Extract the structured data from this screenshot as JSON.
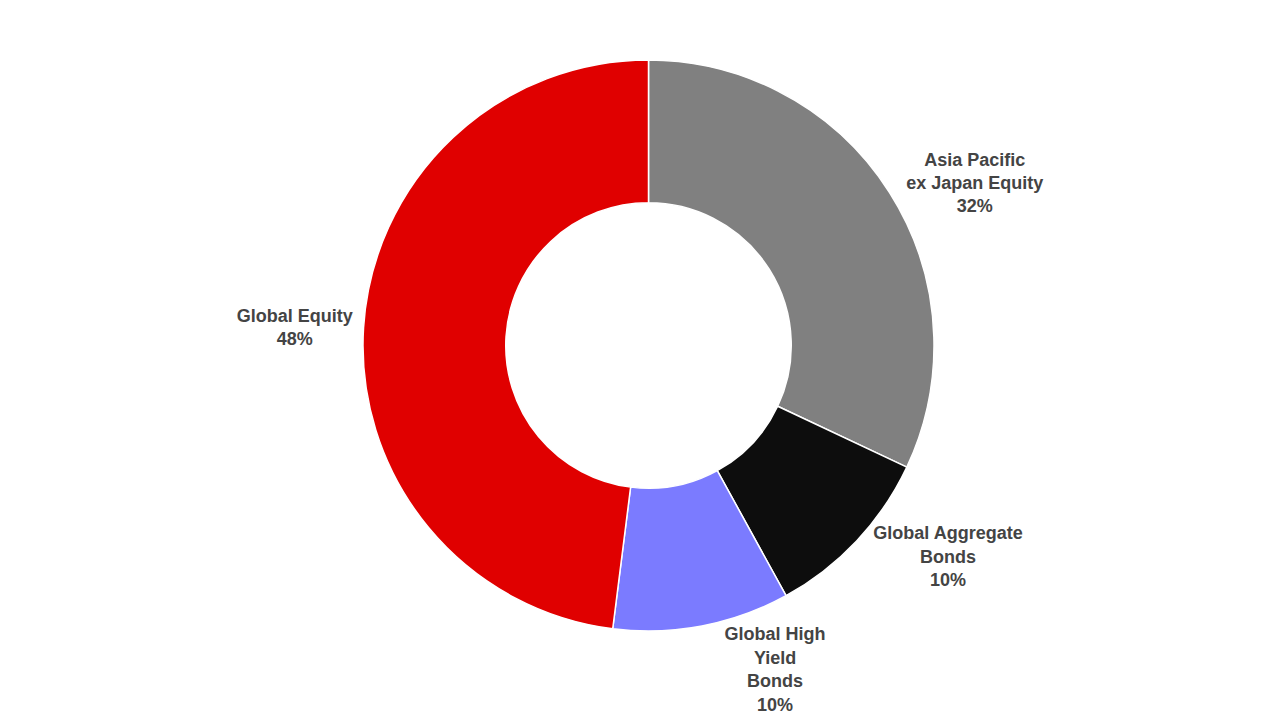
{
  "chart_data": {
    "type": "pie",
    "categories": [
      "Asia Pacific\nex Japan Equity",
      "Global Aggregate\nBonds",
      "Global High\nYield\nBonds",
      "Global Equity"
    ],
    "values": [
      32,
      10,
      10,
      48
    ],
    "value_labels": [
      "32%",
      "10%",
      "10%",
      "48%"
    ],
    "colors": [
      "#808080",
      "#0d0d0d",
      "#7b7bff",
      "#e00000"
    ],
    "data_labels": true
  }
}
